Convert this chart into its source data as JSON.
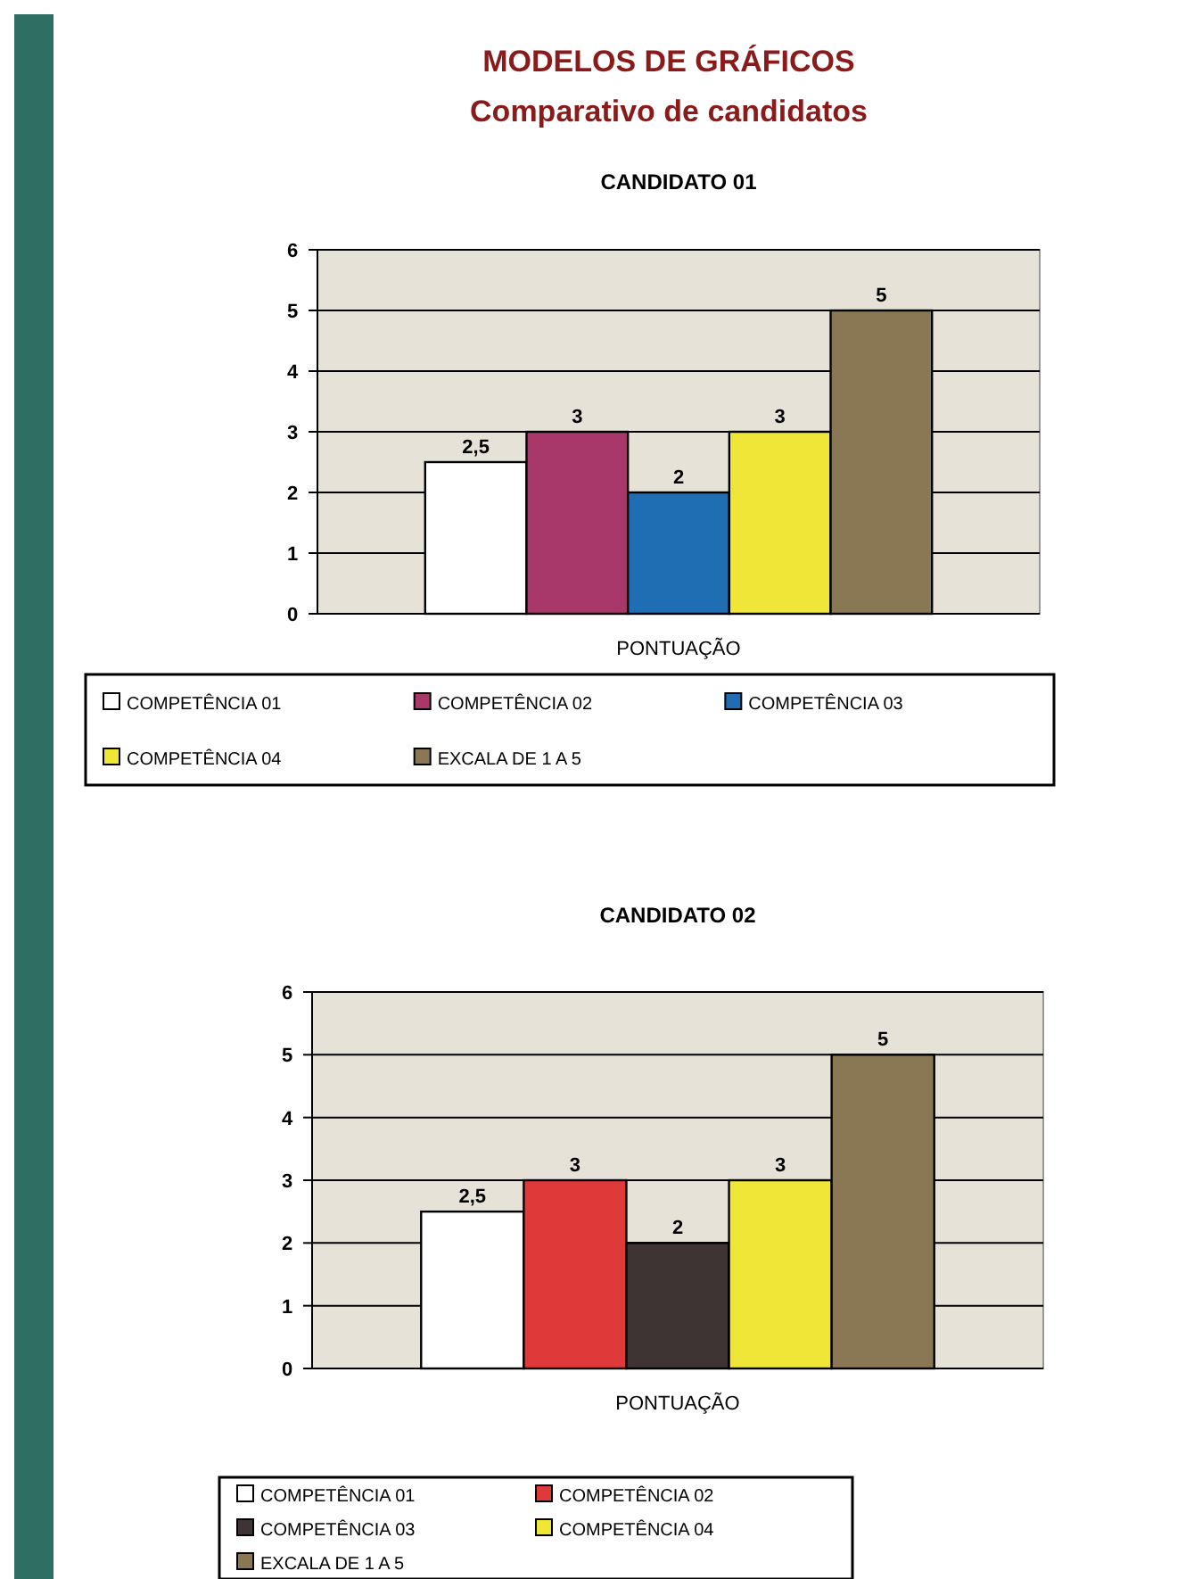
{
  "chart_data": [
    {
      "type": "other",
      "title": "MODELOS DE GRÁFICOS",
      "subtitle": "Comparativo de candidatos"
    },
    {
      "type": "bar",
      "title": "CANDIDATO 01",
      "categories": [
        "PONTUAÇÃO"
      ],
      "ylim": [
        0,
        6
      ],
      "yticks": [
        0,
        1,
        2,
        3,
        4,
        5,
        6
      ],
      "grid": "y",
      "legend": "bottom",
      "series": [
        {
          "name": "COMPETÊNCIA 01",
          "color": "#ffffff",
          "values": [
            2.5
          ],
          "value_labels": [
            "2,5"
          ]
        },
        {
          "name": "COMPETÊNCIA 02",
          "color": "#a8376a",
          "values": [
            3
          ],
          "value_labels": [
            "3"
          ]
        },
        {
          "name": "COMPETÊNCIA 03",
          "color": "#1f6db3",
          "values": [
            2
          ],
          "value_labels": [
            "2"
          ]
        },
        {
          "name": "COMPETÊNCIA 04",
          "color": "#efe637",
          "values": [
            3
          ],
          "value_labels": [
            "3"
          ]
        },
        {
          "name": "EXCALA DE 1 A 5",
          "color": "#8a7753",
          "values": [
            5
          ],
          "value_labels": [
            "5"
          ]
        }
      ]
    },
    {
      "type": "bar",
      "title": "CANDIDATO 02",
      "categories": [
        "PONTUAÇÃO"
      ],
      "ylim": [
        0,
        6
      ],
      "yticks": [
        0,
        1,
        2,
        3,
        4,
        5,
        6
      ],
      "grid": "y",
      "legend": "bottom",
      "series": [
        {
          "name": "COMPETÊNCIA 01",
          "color": "#ffffff",
          "values": [
            2.5
          ],
          "value_labels": [
            "2,5"
          ]
        },
        {
          "name": "COMPETÊNCIA 02",
          "color": "#e0393a",
          "values": [
            3
          ],
          "value_labels": [
            "3"
          ]
        },
        {
          "name": "COMPETÊNCIA 03",
          "color": "#3d3433",
          "values": [
            2
          ],
          "value_labels": [
            "2"
          ]
        },
        {
          "name": "COMPETÊNCIA 04",
          "color": "#efe637",
          "values": [
            3
          ],
          "value_labels": [
            "3"
          ]
        },
        {
          "name": "EXCALA DE 1 A 5",
          "color": "#8a7753",
          "values": [
            5
          ],
          "value_labels": [
            "5"
          ]
        }
      ]
    }
  ]
}
